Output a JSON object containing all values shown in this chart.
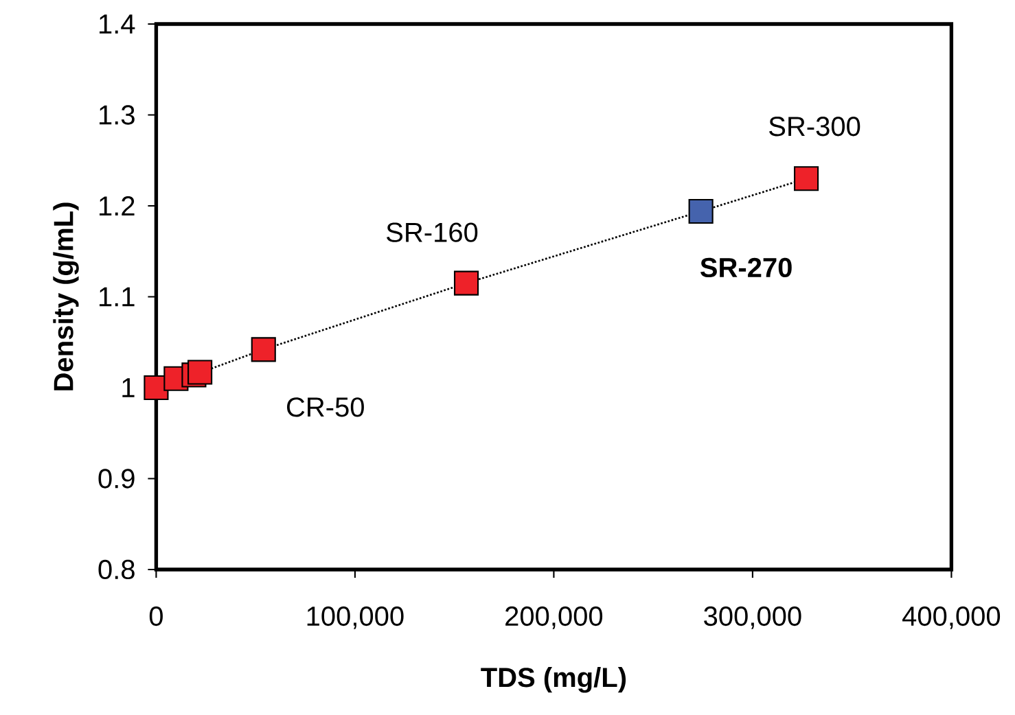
{
  "chart_data": {
    "type": "scatter",
    "xlabel": "TDS (mg/L)",
    "ylabel": "Density (g/mL)",
    "xlim": [
      0,
      400000
    ],
    "ylim": [
      0.8,
      1.4
    ],
    "xticks": [
      0,
      {
        "value": 100000,
        "label": "100,000"
      },
      {
        "value": 200000,
        "label": "200,000"
      },
      {
        "value": 300000,
        "label": "300,000"
      },
      {
        "value": 400000,
        "label": "400,000"
      }
    ],
    "yticks": [
      0.8,
      0.9,
      1,
      1.1,
      1.2,
      1.3,
      1.4
    ],
    "series": [
      {
        "type": "line",
        "line_style": "dotted",
        "marker": "none",
        "color": "#000000",
        "x": [
          0,
          10000,
          19000,
          22000,
          54000,
          156000,
          274000,
          327000
        ],
        "values": [
          1.0,
          1.01,
          1.014,
          null,
          1.042,
          1.115,
          1.194,
          1.23
        ]
      },
      {
        "marker": "square",
        "color": "#ee2229",
        "x": [
          0,
          10000,
          19000,
          22000,
          54000,
          156000,
          327000
        ],
        "values": [
          1.0,
          1.01,
          1.014,
          1.017,
          1.042,
          1.115,
          1.23
        ]
      },
      {
        "marker": "square",
        "color": "#4563ad",
        "x": [
          274000
        ],
        "values": [
          1.194
        ]
      }
    ],
    "annotations": [
      {
        "text": "CR-50",
        "x": 54000,
        "y": 1.042
      },
      {
        "text": "SR-160",
        "x": 156000,
        "y": 1.115
      },
      {
        "text": "**SR-270**",
        "x": 274000,
        "y": 1.194
      },
      {
        "text": "SR-300",
        "x": 327000,
        "y": 1.23
      }
    ]
  }
}
